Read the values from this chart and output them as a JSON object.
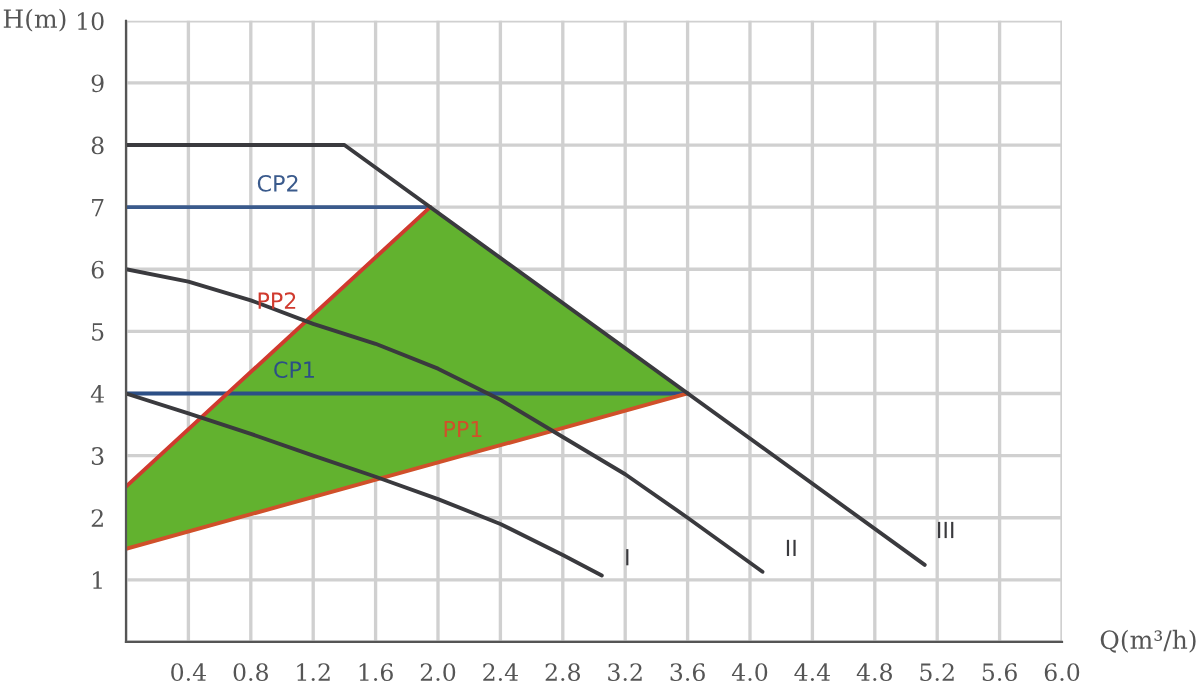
{
  "chart_data": {
    "type": "line",
    "xlabel": "Q(m³/h)",
    "ylabel": "H(m)",
    "xlim": [
      0,
      6
    ],
    "ylim": [
      0,
      10
    ],
    "xticks": [
      {
        "value": 0,
        "label": null
      },
      {
        "value": 0.4,
        "label": "0.4"
      },
      {
        "value": 0.8,
        "label": "0.8"
      },
      {
        "value": 1.2,
        "label": "1.2"
      },
      {
        "value": 1.6,
        "label": "1.6"
      },
      {
        "value": 2.0,
        "label": "2.0"
      },
      {
        "value": 2.4,
        "label": "2.4"
      },
      {
        "value": 2.8,
        "label": "2.8"
      },
      {
        "value": 3.2,
        "label": "3.2"
      },
      {
        "value": 3.6,
        "label": "3.6"
      },
      {
        "value": 4.0,
        "label": "4.0"
      },
      {
        "value": 4.4,
        "label": "4.4"
      },
      {
        "value": 4.8,
        "label": "4.8"
      },
      {
        "value": 5.2,
        "label": "5.2"
      },
      {
        "value": 5.6,
        "label": "5.6"
      },
      {
        "value": 6.0,
        "label": "6.0"
      }
    ],
    "yticks": [
      {
        "value": 0,
        "label": null
      },
      1,
      2,
      3,
      4,
      5,
      6,
      7,
      8,
      9,
      10
    ],
    "grid": true,
    "legend": false,
    "marker": "none",
    "line_style": "solid",
    "series": [
      {
        "type": "area",
        "color": "#62b22f",
        "x": [
          0,
          1.95,
          3.6,
          0
        ],
        "values": [
          2.5,
          7,
          4,
          1.5
        ]
      },
      {
        "name": "CP2",
        "color": "#3a5a8c",
        "x": [
          0,
          1.95
        ],
        "values": [
          7,
          7
        ]
      },
      {
        "name": "CP1",
        "color": "#2c4f86",
        "x": [
          0,
          3.6
        ],
        "values": [
          4,
          4
        ]
      },
      {
        "name": "PP2",
        "color": "#d03a2e",
        "x": [
          0,
          1.95
        ],
        "values": [
          2.5,
          7
        ]
      },
      {
        "name": "PP1",
        "color": "#d0502a",
        "x": [
          0,
          3.6
        ],
        "values": [
          1.5,
          4
        ]
      },
      {
        "name": "I",
        "color": "#3a3a3e",
        "x": [
          0,
          0.4,
          0.8,
          1.2,
          1.6,
          2.0,
          2.4,
          2.8,
          3.05
        ],
        "values": [
          4,
          3.68,
          3.35,
          3.0,
          2.66,
          2.3,
          1.9,
          1.4,
          1.07
        ]
      },
      {
        "name": "II",
        "color": "#3a3a3e",
        "x": [
          0,
          0.4,
          0.8,
          1.2,
          1.6,
          2.0,
          2.4,
          2.8,
          3.2,
          3.6,
          4.08
        ],
        "values": [
          6,
          5.8,
          5.5,
          5.12,
          4.8,
          4.4,
          3.9,
          3.3,
          2.7,
          2.0,
          1.13
        ]
      },
      {
        "name": "III",
        "color": "#3a3a3e",
        "x": [
          0,
          1.4,
          5.12
        ],
        "values": [
          8,
          8,
          1.24
        ]
      }
    ]
  }
}
